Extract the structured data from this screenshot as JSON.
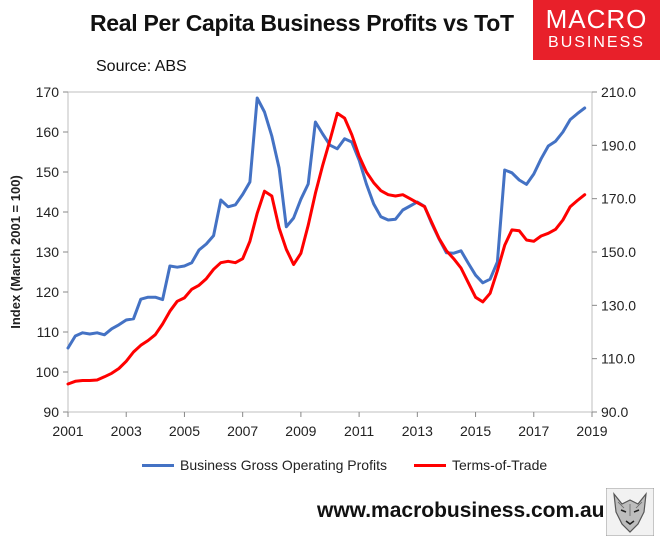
{
  "header": {
    "title": "Real Per Capita Business Profits vs ToT",
    "source": "Source: ABS",
    "logo_line1": "MACRO",
    "logo_line2": "BUSINESS"
  },
  "footer": {
    "url": "www.macrobusiness.com.au"
  },
  "colors": {
    "series1": "#4472c4",
    "series2": "#ff0000",
    "logo": "#e8202a"
  },
  "icons": {
    "logo_badge": "wolf-head-icon"
  },
  "chart_data": {
    "type": "line",
    "title": "Real Per Capita Business Profits vs ToT",
    "ylabel": "Index (March 2001 = 100)",
    "x_ticks": [
      "2001",
      "2003",
      "2005",
      "2007",
      "2009",
      "2011",
      "2013",
      "2015",
      "2017",
      "2019"
    ],
    "xlim": [
      2001,
      2019
    ],
    "y_left": {
      "lim": [
        90,
        170
      ],
      "ticks": [
        "90",
        "100",
        "110",
        "120",
        "130",
        "140",
        "150",
        "160",
        "170"
      ]
    },
    "y_right": {
      "lim": [
        90,
        210
      ],
      "ticks": [
        "90.0",
        "110.0",
        "130.0",
        "150.0",
        "170.0",
        "190.0",
        "210.0"
      ]
    },
    "legend_position": "bottom",
    "grid": false,
    "series": [
      {
        "name": "Business Gross Operating Profits",
        "axis": "left",
        "x": [
          2001.0,
          2001.25,
          2001.5,
          2001.75,
          2002.0,
          2002.25,
          2002.5,
          2002.75,
          2003.0,
          2003.25,
          2003.5,
          2003.75,
          2004.0,
          2004.25,
          2004.5,
          2004.75,
          2005.0,
          2005.25,
          2005.5,
          2005.75,
          2006.0,
          2006.25,
          2006.5,
          2006.75,
          2007.0,
          2007.25,
          2007.5,
          2007.75,
          2008.0,
          2008.25,
          2008.5,
          2008.75,
          2009.0,
          2009.25,
          2009.5,
          2009.75,
          2010.0,
          2010.25,
          2010.5,
          2010.75,
          2011.0,
          2011.25,
          2011.5,
          2011.75,
          2012.0,
          2012.25,
          2012.5,
          2012.75,
          2013.0,
          2013.25,
          2013.5,
          2013.75,
          2014.0,
          2014.25,
          2014.5,
          2014.75,
          2015.0,
          2015.25,
          2015.5,
          2015.75,
          2016.0,
          2016.25,
          2016.5,
          2016.75,
          2017.0,
          2017.25,
          2017.5,
          2017.75,
          2018.0,
          2018.25,
          2018.5,
          2018.75
        ],
        "values": [
          106,
          109,
          109.8,
          109.5,
          109.8,
          109.3,
          110.8,
          111.8,
          113,
          113.3,
          118.2,
          118.7,
          118.7,
          118.1,
          126.5,
          126.2,
          126.5,
          127.3,
          130.5,
          132,
          134.1,
          143,
          141.3,
          141.8,
          144.4,
          147.5,
          168.5,
          165,
          159,
          151,
          136.3,
          138.5,
          143.2,
          147,
          162.5,
          159.5,
          156.7,
          155.8,
          158.3,
          157.5,
          153,
          147,
          142,
          138.8,
          138,
          138.2,
          140.5,
          141.5,
          142.5,
          141.4,
          137,
          133.2,
          129.8,
          129.7,
          130.3,
          127.2,
          124.2,
          122.3,
          123.2,
          127.5,
          150.5,
          149.8,
          148,
          146.9,
          149.5,
          153.3,
          156.5,
          157.7,
          160,
          163.1,
          164.6,
          166
        ]
      },
      {
        "name": "Terms-of-Trade",
        "axis": "right",
        "x": [
          2001.0,
          2001.25,
          2001.5,
          2001.75,
          2002.0,
          2002.25,
          2002.5,
          2002.75,
          2003.0,
          2003.25,
          2003.5,
          2003.75,
          2004.0,
          2004.25,
          2004.5,
          2004.75,
          2005.0,
          2005.25,
          2005.5,
          2005.75,
          2006.0,
          2006.25,
          2006.5,
          2006.75,
          2007.0,
          2007.25,
          2007.5,
          2007.75,
          2008.0,
          2008.25,
          2008.5,
          2008.75,
          2009.0,
          2009.25,
          2009.5,
          2009.75,
          2010.0,
          2010.25,
          2010.5,
          2010.75,
          2011.0,
          2011.25,
          2011.5,
          2011.75,
          2012.0,
          2012.25,
          2012.5,
          2012.75,
          2013.0,
          2013.25,
          2013.5,
          2013.75,
          2014.0,
          2014.25,
          2014.5,
          2014.75,
          2015.0,
          2015.25,
          2015.5,
          2015.75,
          2016.0,
          2016.25,
          2016.5,
          2016.75,
          2017.0,
          2017.25,
          2017.5,
          2017.75,
          2018.0,
          2018.25,
          2018.5,
          2018.75
        ],
        "values": [
          100.5,
          101.5,
          101.8,
          101.8,
          102,
          103.2,
          104.5,
          106.3,
          109,
          112.5,
          115,
          116.8,
          119,
          123,
          127.8,
          131.5,
          132.8,
          136,
          137.5,
          140,
          143.5,
          146,
          146.5,
          146,
          147.5,
          154,
          164.5,
          172.8,
          171,
          159,
          151,
          145.3,
          149.5,
          160,
          172,
          182.5,
          192,
          202,
          200.2,
          194,
          186,
          180,
          176,
          173,
          171.5,
          171,
          171.5,
          170,
          168.5,
          167,
          161,
          155,
          150.5,
          147.5,
          144,
          138.5,
          133,
          131.3,
          134.5,
          143,
          152.5,
          158.3,
          158,
          154.5,
          154,
          156,
          157,
          158.5,
          162,
          167,
          169.3,
          171.5
        ]
      }
    ]
  }
}
